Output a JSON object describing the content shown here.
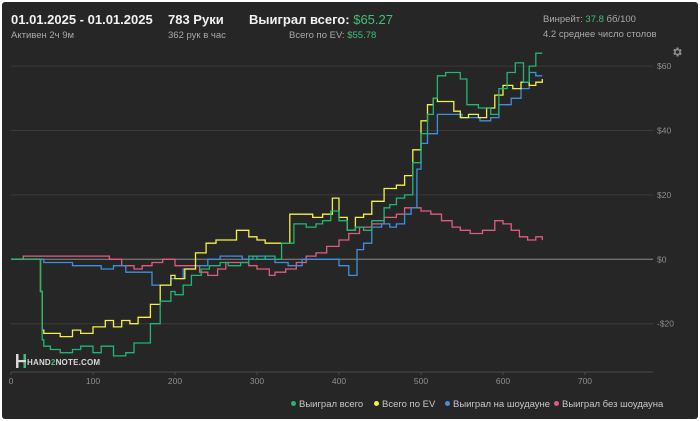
{
  "header": {
    "date_range": "01.01.2025 - 01.01.2025",
    "active_label": "Активен 2ч 9м",
    "hands_label": "783 Руки",
    "hands_per_hour": "362 рук в час",
    "won_total_label": "Выиграл всего:",
    "won_total_value": "$65.27",
    "ev_total_label": "Всего по EV:",
    "ev_total_value": "$55.78",
    "winrate_label": "Винрейт:",
    "winrate_value": "37.8",
    "winrate_suffix": "бб/100",
    "tables_avg": "4.2 среднее число столов"
  },
  "logo": {
    "prefix": "HAND",
    "mid": "2",
    "suffix": "NOTE.COM"
  },
  "legend": {
    "won_total": "Выиграл всего",
    "ev_total": "Всего по EV",
    "won_showdown": "Выиграл на шоудауне",
    "won_no_showdown": "Выиграл без шоудауна"
  },
  "colors": {
    "won_total": "#22b573",
    "ev_total": "#f4f04a",
    "won_showdown": "#3f8fe0",
    "won_no_showdown": "#e05c7f",
    "background": "#262626",
    "accent_green": "#3fbf7a"
  },
  "chart_data": {
    "type": "line",
    "x_ticks": [
      0,
      100,
      200,
      300,
      400,
      500,
      600,
      700
    ],
    "y_ticks": [
      -20,
      0,
      20,
      40,
      60
    ],
    "y_tick_labels": [
      "-$20",
      "$0",
      "$20",
      "$40",
      "$60"
    ],
    "xlim": [
      0,
      783
    ],
    "ylim": [
      -35,
      65
    ],
    "series": [
      {
        "name": "Выиграл всего",
        "key": "won_total",
        "points": [
          [
            0,
            0
          ],
          [
            25,
            0
          ],
          [
            33,
            0
          ],
          [
            36,
            -10
          ],
          [
            38,
            -25
          ],
          [
            40,
            -27
          ],
          [
            48,
            -28
          ],
          [
            60,
            -29
          ],
          [
            75,
            -28
          ],
          [
            85,
            -27
          ],
          [
            100,
            -29
          ],
          [
            110,
            -27
          ],
          [
            125,
            -30
          ],
          [
            140,
            -29
          ],
          [
            150,
            -26
          ],
          [
            160,
            -26
          ],
          [
            170,
            -20
          ],
          [
            182,
            -13
          ],
          [
            195,
            -10
          ],
          [
            200,
            -11
          ],
          [
            210,
            -8
          ],
          [
            220,
            -5
          ],
          [
            232,
            -3
          ],
          [
            242,
            -2
          ],
          [
            255,
            -1
          ],
          [
            265,
            -2
          ],
          [
            280,
            -1
          ],
          [
            290,
            1
          ],
          [
            300,
            0
          ],
          [
            310,
            1
          ],
          [
            322,
            0
          ],
          [
            330,
            5
          ],
          [
            345,
            11
          ],
          [
            360,
            10
          ],
          [
            372,
            11
          ],
          [
            380,
            12
          ],
          [
            390,
            15
          ],
          [
            400,
            12
          ],
          [
            410,
            9
          ],
          [
            420,
            10
          ],
          [
            430,
            9
          ],
          [
            440,
            12
          ],
          [
            455,
            16
          ],
          [
            462,
            17
          ],
          [
            470,
            19
          ],
          [
            480,
            20
          ],
          [
            490,
            30
          ],
          [
            500,
            39
          ],
          [
            508,
            45
          ],
          [
            515,
            50
          ],
          [
            520,
            57
          ],
          [
            530,
            58
          ],
          [
            540,
            58
          ],
          [
            548,
            56
          ],
          [
            556,
            48
          ],
          [
            570,
            47
          ],
          [
            585,
            45
          ],
          [
            595,
            53
          ],
          [
            605,
            58
          ],
          [
            615,
            61
          ],
          [
            625,
            55
          ],
          [
            632,
            60
          ],
          [
            640,
            64
          ],
          [
            648,
            64
          ]
        ]
      },
      {
        "name": "Всего по EV",
        "key": "ev_total",
        "points": [
          [
            0,
            0
          ],
          [
            25,
            0
          ],
          [
            33,
            0
          ],
          [
            36,
            -10
          ],
          [
            38,
            -22
          ],
          [
            40,
            -23
          ],
          [
            50,
            -23
          ],
          [
            60,
            -24
          ],
          [
            75,
            -22
          ],
          [
            85,
            -23
          ],
          [
            100,
            -21
          ],
          [
            115,
            -19
          ],
          [
            125,
            -21
          ],
          [
            135,
            -19
          ],
          [
            145,
            -20
          ],
          [
            155,
            -18
          ],
          [
            170,
            -14
          ],
          [
            182,
            -8
          ],
          [
            195,
            -5
          ],
          [
            200,
            -6
          ],
          [
            212,
            -3
          ],
          [
            225,
            2
          ],
          [
            238,
            5
          ],
          [
            250,
            6
          ],
          [
            262,
            6
          ],
          [
            275,
            9
          ],
          [
            290,
            7
          ],
          [
            300,
            6
          ],
          [
            310,
            5
          ],
          [
            322,
            5
          ],
          [
            340,
            14
          ],
          [
            355,
            14
          ],
          [
            368,
            13
          ],
          [
            380,
            14
          ],
          [
            392,
            19
          ],
          [
            400,
            13
          ],
          [
            410,
            9
          ],
          [
            420,
            13
          ],
          [
            430,
            14
          ],
          [
            440,
            18
          ],
          [
            455,
            22
          ],
          [
            470,
            23
          ],
          [
            480,
            26
          ],
          [
            490,
            34
          ],
          [
            500,
            43
          ],
          [
            508,
            48
          ],
          [
            515,
            50
          ],
          [
            520,
            49
          ],
          [
            530,
            49
          ],
          [
            540,
            46
          ],
          [
            548,
            44
          ],
          [
            558,
            45
          ],
          [
            570,
            44
          ],
          [
            580,
            47
          ],
          [
            590,
            51
          ],
          [
            600,
            54
          ],
          [
            612,
            53
          ],
          [
            622,
            55
          ],
          [
            632,
            54
          ],
          [
            640,
            55
          ],
          [
            648,
            56
          ]
        ]
      },
      {
        "name": "Выиграл на шоудауне",
        "key": "won_showdown",
        "points": [
          [
            0,
            0
          ],
          [
            10,
            0
          ],
          [
            25,
            0
          ],
          [
            35,
            0
          ],
          [
            40,
            -1
          ],
          [
            60,
            -1
          ],
          [
            75,
            -2
          ],
          [
            95,
            -2
          ],
          [
            110,
            -3
          ],
          [
            125,
            -2
          ],
          [
            140,
            -4
          ],
          [
            160,
            -4
          ],
          [
            172,
            -8
          ],
          [
            182,
            -8
          ],
          [
            195,
            -6
          ],
          [
            210,
            -3
          ],
          [
            225,
            -2
          ],
          [
            240,
            0
          ],
          [
            255,
            1
          ],
          [
            270,
            1
          ],
          [
            282,
            0
          ],
          [
            295,
            1
          ],
          [
            310,
            0
          ],
          [
            322,
            -1
          ],
          [
            338,
            -2
          ],
          [
            355,
            0
          ],
          [
            370,
            0
          ],
          [
            385,
            0
          ],
          [
            400,
            -2
          ],
          [
            412,
            -5
          ],
          [
            422,
            3
          ],
          [
            430,
            5
          ],
          [
            440,
            10
          ],
          [
            452,
            11
          ],
          [
            462,
            10
          ],
          [
            470,
            11
          ],
          [
            480,
            14
          ],
          [
            488,
            16
          ],
          [
            495,
            28
          ],
          [
            500,
            36
          ],
          [
            508,
            39
          ],
          [
            520,
            45
          ],
          [
            530,
            45
          ],
          [
            540,
            45
          ],
          [
            550,
            44
          ],
          [
            562,
            44
          ],
          [
            572,
            43
          ],
          [
            585,
            44
          ],
          [
            595,
            48
          ],
          [
            610,
            50
          ],
          [
            622,
            53
          ],
          [
            632,
            58
          ],
          [
            640,
            57
          ],
          [
            648,
            57
          ]
        ]
      },
      {
        "name": "Выиграл без шоудауна",
        "key": "won_no_showdown",
        "points": [
          [
            0,
            0
          ],
          [
            15,
            1
          ],
          [
            30,
            1
          ],
          [
            45,
            1
          ],
          [
            60,
            1
          ],
          [
            75,
            1
          ],
          [
            90,
            1
          ],
          [
            105,
            1
          ],
          [
            120,
            0
          ],
          [
            135,
            -2
          ],
          [
            150,
            -3
          ],
          [
            160,
            -2
          ],
          [
            172,
            -1
          ],
          [
            185,
            0
          ],
          [
            200,
            -2
          ],
          [
            215,
            -2
          ],
          [
            230,
            -4
          ],
          [
            240,
            -5
          ],
          [
            252,
            -3
          ],
          [
            262,
            -1
          ],
          [
            275,
            -1
          ],
          [
            290,
            -2
          ],
          [
            300,
            -3
          ],
          [
            315,
            -5
          ],
          [
            322,
            -4
          ],
          [
            335,
            -3
          ],
          [
            348,
            -1
          ],
          [
            360,
            1
          ],
          [
            372,
            2
          ],
          [
            385,
            4
          ],
          [
            400,
            6
          ],
          [
            412,
            8
          ],
          [
            425,
            10
          ],
          [
            440,
            11
          ],
          [
            455,
            13
          ],
          [
            470,
            14
          ],
          [
            480,
            16
          ],
          [
            490,
            16
          ],
          [
            500,
            15
          ],
          [
            512,
            14
          ],
          [
            525,
            12
          ],
          [
            538,
            10
          ],
          [
            548,
            9
          ],
          [
            560,
            8
          ],
          [
            575,
            9
          ],
          [
            590,
            12
          ],
          [
            600,
            11
          ],
          [
            610,
            9
          ],
          [
            620,
            7
          ],
          [
            630,
            6
          ],
          [
            640,
            7
          ],
          [
            648,
            6
          ]
        ]
      }
    ]
  }
}
